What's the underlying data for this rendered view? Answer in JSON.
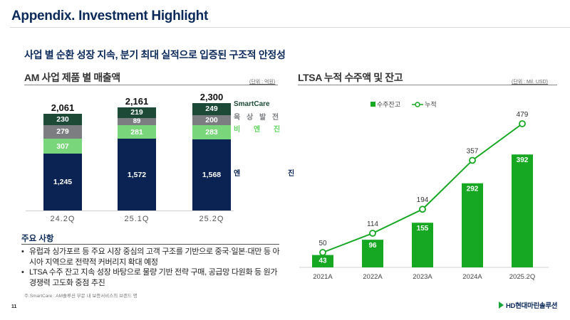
{
  "page": {
    "title": "Appendix. Investment Highlight",
    "headline": "사업 별 순환 성장 지속, 분기 최대 실적으로 입증된 구조적 안정성",
    "page_number": "11",
    "logo_text": "HD현대마린솔루션"
  },
  "left_section": {
    "title": "AM 사업 제품 별 매출액",
    "unit": "(단위 : 억원)"
  },
  "right_section": {
    "title": "LTSA 누적 수주액 및 잔고",
    "unit": "(단위 : Mil. USD)"
  },
  "notes": {
    "title": "주요 사항",
    "items": [
      "유럽과 싱가포르 등 주요 시장 중심의 고객 구조를 기반으로 중국·일본·대만 등 아시아 지역으로 전략적 커버리지 확대 예정",
      "LTSA 수주 잔고 지속 성장 바탕으로 물량 기반 전략 구매, 공급망 다원화 등 원가 경쟁력 고도화 중점 추진"
    ],
    "footnote": "주.SmartCare : AM솔루션 부문 내 보증서비스의 브랜드 명"
  },
  "chart_data": [
    {
      "type": "bar",
      "stacked": true,
      "title": "AM 사업 제품 별 매출액",
      "unit": "(단위 : 억원)",
      "categories": [
        "24.2Q",
        "25.1Q",
        "25.2Q"
      ],
      "totals": [
        "2,061",
        "2,161",
        "2,300"
      ],
      "series": [
        {
          "name": "엔 진",
          "color": "#0b2352",
          "values": [
            1245,
            1572,
            1568
          ],
          "labels": [
            "1,245",
            "1,572",
            "1,568"
          ]
        },
        {
          "name": "비 엔 진",
          "color": "#7ad67a",
          "values": [
            307,
            281,
            283
          ],
          "labels": [
            "307",
            "281",
            "283"
          ]
        },
        {
          "name": "육 상 발 전",
          "color": "#7b7d80",
          "values": [
            279,
            89,
            200
          ],
          "labels": [
            "279",
            "89",
            "200"
          ]
        },
        {
          "name": "SmartCare",
          "color": "#1c4a37",
          "values": [
            230,
            219,
            249
          ],
          "labels": [
            "230",
            "219",
            "249"
          ]
        }
      ],
      "legend_colors": {
        "SmartCare": "#1c4a37",
        "육 상 발 전": "#7b7d80",
        "비 엔 진": "#7ad67a",
        "엔 진": "#0b2352"
      }
    },
    {
      "type": "bar+line",
      "title": "LTSA 누적 수주액 및 잔고",
      "unit": "(단위 : Mil. USD)",
      "categories": [
        "2021A",
        "2022A",
        "2023A",
        "2024A",
        "2025.2Q"
      ],
      "series": [
        {
          "name": "수주잔고",
          "type": "bar",
          "color": "#16a822",
          "values": [
            43,
            96,
            155,
            292,
            392
          ]
        },
        {
          "name": "누적",
          "type": "line",
          "color": "#16a822",
          "values": [
            50,
            114,
            194,
            357,
            479
          ]
        }
      ],
      "legend": "top-center"
    }
  ]
}
